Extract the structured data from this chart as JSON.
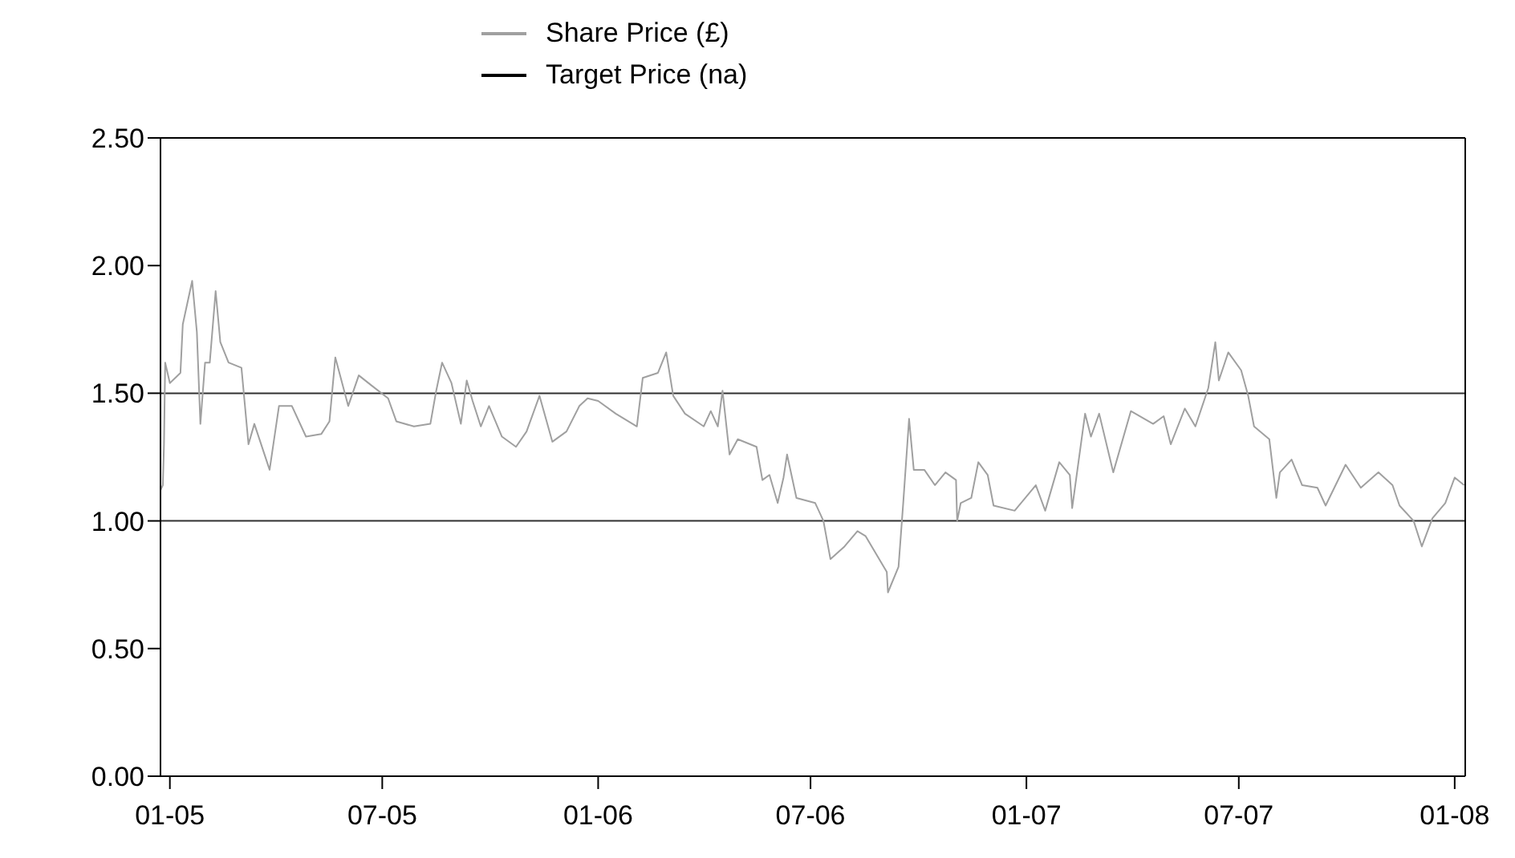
{
  "chart_data": {
    "type": "line",
    "legend": "top",
    "xlim": [
      "2004-12-24",
      "2008-01-10"
    ],
    "xticks": [
      {
        "value": "2005-01-01",
        "label": "01-05"
      },
      {
        "value": "2005-07-01",
        "label": "07-05"
      },
      {
        "value": "2006-01-01",
        "label": "01-06"
      },
      {
        "value": "2006-07-01",
        "label": "07-06"
      },
      {
        "value": "2007-01-01",
        "label": "01-07"
      },
      {
        "value": "2007-07-01",
        "label": "07-07"
      },
      {
        "value": "2008-01-01",
        "label": "01-08"
      }
    ],
    "ylim": [
      0,
      2.5
    ],
    "yticks": [
      {
        "value": 0,
        "label": "0.00"
      },
      {
        "value": 0.5,
        "label": "0.50"
      },
      {
        "value": 1,
        "label": "1.00"
      },
      {
        "value": 1.5,
        "label": "1.50"
      },
      {
        "value": 2,
        "label": "2.00"
      },
      {
        "value": 2.5,
        "label": "2.50"
      }
    ],
    "ref_lines": [
      {
        "axis": "y",
        "value": 1,
        "color": "#303030"
      },
      {
        "axis": "y",
        "value": 1.5,
        "color": "#303030"
      }
    ],
    "series": [
      {
        "name": "Share  Price (£)",
        "color": "#a0a0a0",
        "x": [
          "2004-12-24",
          "2004-12-26",
          "2004-12-27",
          "2004-12-28",
          "2005-01-01",
          "2005-01-10",
          "2005-01-12",
          "2005-01-20",
          "2005-01-24",
          "2005-01-27",
          "2005-01-31",
          "2005-02-04",
          "2005-02-09",
          "2005-02-13",
          "2005-02-20",
          "2005-03-03",
          "2005-03-09",
          "2005-03-14",
          "2005-03-27",
          "2005-04-04",
          "2005-04-15",
          "2005-04-27",
          "2005-05-10",
          "2005-05-17",
          "2005-05-22",
          "2005-06-02",
          "2005-06-11",
          "2005-06-22",
          "2005-07-06",
          "2005-07-13",
          "2005-07-28",
          "2005-08-11",
          "2005-08-16",
          "2005-08-21",
          "2005-08-29",
          "2005-09-06",
          "2005-09-11",
          "2005-09-16",
          "2005-09-23",
          "2005-09-30",
          "2005-10-11",
          "2005-10-23",
          "2005-11-01",
          "2005-11-12",
          "2005-11-23",
          "2005-12-05",
          "2005-12-16",
          "2005-12-23",
          "2006-01-01",
          "2006-01-16",
          "2006-02-03",
          "2006-02-08",
          "2006-02-21",
          "2006-02-28",
          "2006-03-06",
          "2006-03-16",
          "2006-04-01",
          "2006-04-07",
          "2006-04-13",
          "2006-04-17",
          "2006-04-23",
          "2006-04-30",
          "2006-05-16",
          "2006-05-21",
          "2006-05-27",
          "2006-06-03",
          "2006-06-08",
          "2006-06-11",
          "2006-06-19",
          "2006-07-05",
          "2006-07-12",
          "2006-07-18",
          "2006-07-30",
          "2006-08-10",
          "2006-08-17",
          "2006-08-26",
          "2006-09-04",
          "2006-09-05",
          "2006-09-14",
          "2006-09-18",
          "2006-09-23",
          "2006-09-27",
          "2006-10-06",
          "2006-10-15",
          "2006-10-24",
          "2006-11-02",
          "2006-11-03",
          "2006-11-06",
          "2006-11-15",
          "2006-11-21",
          "2006-11-29",
          "2006-12-04",
          "2006-12-22",
          "2007-01-09",
          "2007-01-17",
          "2007-01-29",
          "2007-02-07",
          "2007-02-09",
          "2007-02-20",
          "2007-02-25",
          "2007-03-04",
          "2007-03-16",
          "2007-03-31",
          "2007-04-19",
          "2007-04-28",
          "2007-05-04",
          "2007-05-16",
          "2007-05-25",
          "2007-06-05",
          "2007-06-11",
          "2007-06-14",
          "2007-06-22",
          "2007-07-03",
          "2007-07-09",
          "2007-07-14",
          "2007-07-27",
          "2007-08-02",
          "2007-08-05",
          "2007-08-15",
          "2007-08-24",
          "2007-09-06",
          "2007-09-13",
          "2007-09-30",
          "2007-10-13",
          "2007-10-28",
          "2007-11-09",
          "2007-11-15",
          "2007-11-27",
          "2007-12-04",
          "2007-12-13",
          "2007-12-24",
          "2008-01-01",
          "2008-01-09"
        ],
        "values": [
          1.12,
          1.14,
          1.3,
          1.62,
          1.54,
          1.58,
          1.77,
          1.94,
          1.74,
          1.38,
          1.62,
          1.62,
          1.9,
          1.7,
          1.62,
          1.6,
          1.3,
          1.38,
          1.2,
          1.45,
          1.45,
          1.33,
          1.34,
          1.39,
          1.64,
          1.45,
          1.57,
          1.53,
          1.48,
          1.39,
          1.37,
          1.38,
          1.51,
          1.62,
          1.54,
          1.38,
          1.55,
          1.47,
          1.37,
          1.45,
          1.33,
          1.29,
          1.35,
          1.49,
          1.31,
          1.35,
          1.45,
          1.48,
          1.47,
          1.42,
          1.37,
          1.56,
          1.58,
          1.66,
          1.49,
          1.42,
          1.37,
          1.43,
          1.37,
          1.51,
          1.26,
          1.32,
          1.29,
          1.16,
          1.18,
          1.07,
          1.17,
          1.26,
          1.09,
          1.07,
          1.0,
          0.85,
          0.9,
          0.96,
          0.94,
          0.87,
          0.8,
          0.72,
          0.82,
          1.07,
          1.4,
          1.2,
          1.2,
          1.14,
          1.19,
          1.16,
          1.0,
          1.07,
          1.09,
          1.23,
          1.18,
          1.06,
          1.04,
          1.14,
          1.04,
          1.23,
          1.18,
          1.05,
          1.42,
          1.33,
          1.42,
          1.19,
          1.43,
          1.38,
          1.41,
          1.3,
          1.44,
          1.37,
          1.52,
          1.7,
          1.55,
          1.66,
          1.59,
          1.49,
          1.37,
          1.32,
          1.09,
          1.19,
          1.24,
          1.14,
          1.13,
          1.06,
          1.22,
          1.13,
          1.19,
          1.14,
          1.06,
          1.0,
          0.9,
          1.01,
          1.07,
          1.17,
          1.14
        ]
      },
      {
        "name": "Target Price (na)",
        "color": "#000000"
      }
    ]
  }
}
